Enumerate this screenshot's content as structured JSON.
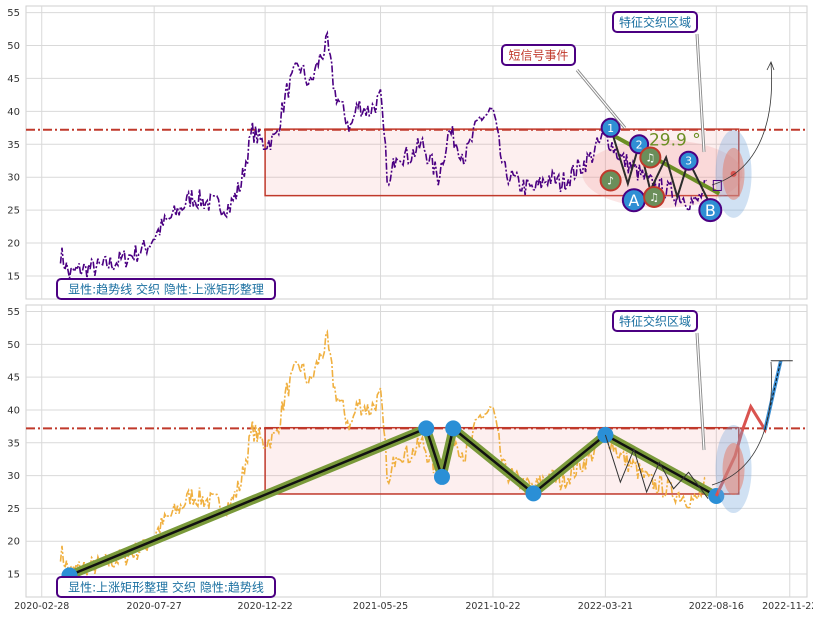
{
  "chart_data": [
    {
      "type": "line",
      "panel": "top",
      "ylim": [
        11.5,
        56
      ],
      "yticks": [
        15,
        20,
        25,
        30,
        35,
        40,
        45,
        50,
        55
      ],
      "grid": true,
      "reference_line": 37.2,
      "series": [
        {
          "color": "#4b0082",
          "x": [
            "2020-03-24",
            "2020-04-05",
            "2020-04-20",
            "2020-05-15",
            "2020-06-15",
            "2020-07-15",
            "2020-08-10",
            "2020-08-25",
            "2020-09-15",
            "2020-10-10",
            "2020-11-05",
            "2020-11-20",
            "2020-12-05",
            "2020-12-20",
            "2021-01-05",
            "2021-01-20",
            "2021-02-05",
            "2021-02-20",
            "2021-03-05",
            "2021-03-15",
            "2021-03-25",
            "2021-04-05",
            "2021-04-15",
            "2021-04-25",
            "2021-05-10",
            "2021-05-25",
            "2021-06-05",
            "2021-06-15",
            "2021-07-01",
            "2021-07-20",
            "2021-08-10",
            "2021-08-25",
            "2021-09-15",
            "2021-10-05",
            "2021-10-22",
            "2021-11-05",
            "2021-11-25",
            "2021-12-15",
            "2022-01-05",
            "2022-01-20",
            "2022-02-10",
            "2022-03-01",
            "2022-03-21",
            "2022-04-10",
            "2022-05-01",
            "2022-05-20",
            "2022-06-10",
            "2022-07-01",
            "2022-07-20",
            "2022-08-05"
          ],
          "y": [
            18.5,
            15.2,
            16,
            16.3,
            17.5,
            19.2,
            23,
            24.5,
            27,
            26,
            25.5,
            29,
            37,
            35,
            36,
            43,
            47,
            44,
            48,
            50.3,
            43,
            40,
            37.5,
            41,
            40,
            42,
            28,
            34,
            33,
            35,
            30,
            37,
            33,
            39,
            40,
            31,
            29,
            28,
            30,
            29,
            31,
            33,
            36.5,
            33,
            31,
            29,
            28,
            27,
            26,
            29
          ]
        }
      ],
      "rect": {
        "x0": "2020-12-22",
        "x1": "2022-09-15",
        "y0": 27.2,
        "y1": 37.3
      },
      "trend_angle_label": "-29.9 °",
      "markers": [
        {
          "label": "1",
          "x": "2022-03-28",
          "y": 37.5
        },
        {
          "label": "2",
          "x": "2022-05-05",
          "y": 35
        },
        {
          "label": "3",
          "x": "2022-07-10",
          "y": 32.5
        },
        {
          "label": "A",
          "x": "2022-04-28",
          "y": 26.5
        },
        {
          "label": "B",
          "x": "2022-08-08",
          "y": 25
        },
        {
          "label": "♪",
          "x": "2022-03-28",
          "y": 29.5
        },
        {
          "label": "♫",
          "x": "2022-05-20",
          "y": 33
        },
        {
          "label": "♫",
          "x": "2022-05-25",
          "y": 27
        }
      ],
      "annotations": {
        "short_signal": "短信号事件",
        "feature_zone": "特征交织区域",
        "caption": "显性:趋势线 交织 隐性:上涨矩形整理"
      }
    },
    {
      "type": "line",
      "panel": "bottom",
      "ylim": [
        11.5,
        56
      ],
      "yticks": [
        15,
        20,
        25,
        30,
        35,
        40,
        45,
        50,
        55
      ],
      "xticks": [
        "2020-02-28",
        "2020-07-27",
        "2020-12-22",
        "2021-05-25",
        "2021-10-22",
        "2022-03-21",
        "2022-08-16",
        "2022-11-22"
      ],
      "grid": true,
      "reference_line": 37.2,
      "series": [
        {
          "color": "#f0b040",
          "x": [
            "2020-03-24",
            "2020-04-05",
            "2020-04-20",
            "2020-05-15",
            "2020-06-15",
            "2020-07-15",
            "2020-08-10",
            "2020-08-25",
            "2020-09-15",
            "2020-10-10",
            "2020-11-05",
            "2020-11-20",
            "2020-12-05",
            "2020-12-20",
            "2021-01-05",
            "2021-01-20",
            "2021-02-05",
            "2021-02-20",
            "2021-03-05",
            "2021-03-15",
            "2021-03-25",
            "2021-04-05",
            "2021-04-15",
            "2021-04-25",
            "2021-05-10",
            "2021-05-25",
            "2021-06-05",
            "2021-06-15",
            "2021-07-01",
            "2021-07-20",
            "2021-08-10",
            "2021-08-25",
            "2021-09-15",
            "2021-10-05",
            "2021-10-22",
            "2021-11-05",
            "2021-11-25",
            "2021-12-15",
            "2022-01-05",
            "2022-01-20",
            "2022-02-10",
            "2022-03-01",
            "2022-03-21",
            "2022-04-10",
            "2022-05-01",
            "2022-05-20",
            "2022-06-10",
            "2022-07-01",
            "2022-07-20",
            "2022-08-05"
          ],
          "y": [
            18.5,
            15.2,
            16,
            16.3,
            17.5,
            19.2,
            23,
            24.5,
            27,
            26,
            25.5,
            29,
            37,
            35,
            36,
            43,
            47,
            44,
            48,
            50.3,
            43,
            40,
            37.5,
            41,
            40,
            42,
            28,
            34,
            33,
            35,
            30,
            37,
            33,
            39,
            40,
            31,
            29,
            28,
            30,
            29,
            31,
            33,
            36.5,
            33,
            31,
            29,
            28,
            27,
            26,
            29
          ]
        }
      ],
      "zigzag": {
        "x": [
          "2020-04-05",
          "2021-07-25",
          "2021-08-15",
          "2021-08-30",
          "2021-12-15",
          "2022-03-21",
          "2022-08-16"
        ],
        "y": [
          14.8,
          37.2,
          29.8,
          37.2,
          27.3,
          36.2,
          26.9
        ]
      },
      "projection": {
        "x": [
          "2022-08-16",
          "2022-09-10",
          "2022-09-20",
          "2022-10-01",
          "2022-10-20",
          "2022-11-10"
        ],
        "y": [
          26.9,
          33,
          37,
          40.5,
          37,
          47.5
        ]
      },
      "rect": {
        "x0": "2020-12-22",
        "x1": "2022-09-15",
        "y0": 27.2,
        "y1": 37.3
      },
      "annotations": {
        "feature_zone": "特征交织区域",
        "caption": "显性:上涨矩形整理 交织 隐性:趋势线"
      }
    }
  ]
}
